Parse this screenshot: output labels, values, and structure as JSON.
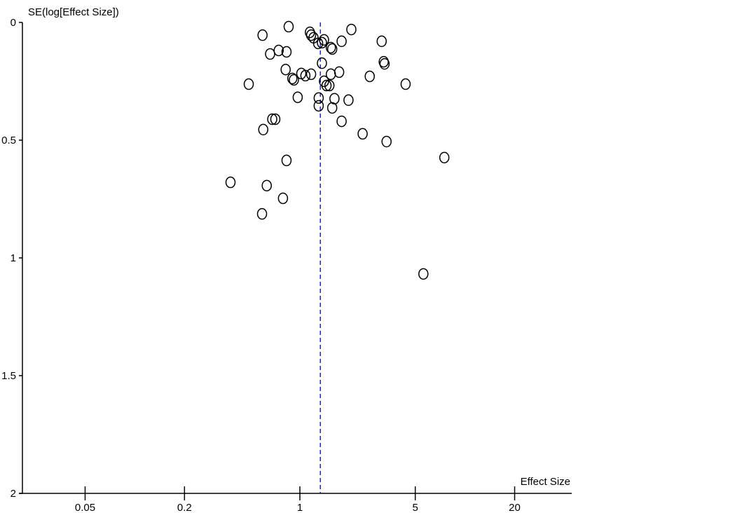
{
  "chart_data": {
    "type": "scatter",
    "title": "",
    "xlabel": "Effect Size",
    "ylabel": "SE(log[Effect Size])",
    "x_scale": "log",
    "y_reversed": true,
    "xlim": [
      0.027,
      30
    ],
    "ylim": [
      0,
      2
    ],
    "x_ticks": [
      0.05,
      0.2,
      1,
      5,
      20
    ],
    "x_tick_labels": [
      "0.05",
      "0.2",
      "1",
      "5",
      "20"
    ],
    "y_ticks": [
      0,
      0.5,
      1,
      1.5,
      2
    ],
    "y_tick_labels": [
      "0",
      "0.5",
      "1",
      "1.5",
      "2"
    ],
    "grid": false,
    "reference_line": {
      "x": 1.33,
      "style": "dashed",
      "color": "#0000cc"
    },
    "marker": "open-circle",
    "points": [
      [
        0.855,
        0.018
      ],
      [
        0.594,
        0.054
      ],
      [
        1.15,
        0.042
      ],
      [
        1.17,
        0.054
      ],
      [
        1.21,
        0.065
      ],
      [
        2.05,
        0.03
      ],
      [
        1.4,
        0.074
      ],
      [
        1.36,
        0.086
      ],
      [
        1.29,
        0.089
      ],
      [
        1.79,
        0.08
      ],
      [
        3.13,
        0.08
      ],
      [
        1.54,
        0.107
      ],
      [
        1.57,
        0.113
      ],
      [
        0.66,
        0.134
      ],
      [
        0.744,
        0.119
      ],
      [
        0.83,
        0.125
      ],
      [
        3.22,
        0.167
      ],
      [
        3.26,
        0.176
      ],
      [
        1.36,
        0.173
      ],
      [
        0.82,
        0.2
      ],
      [
        1.73,
        0.211
      ],
      [
        1.02,
        0.217
      ],
      [
        1.08,
        0.226
      ],
      [
        1.17,
        0.22
      ],
      [
        1.54,
        0.22
      ],
      [
        0.9,
        0.238
      ],
      [
        0.92,
        0.244
      ],
      [
        2.65,
        0.229
      ],
      [
        1.4,
        0.25
      ],
      [
        1.45,
        0.268
      ],
      [
        1.51,
        0.268
      ],
      [
        0.49,
        0.262
      ],
      [
        4.37,
        0.262
      ],
      [
        0.97,
        0.318
      ],
      [
        1.62,
        0.324
      ],
      [
        1.3,
        0.321
      ],
      [
        1.97,
        0.33
      ],
      [
        1.3,
        0.354
      ],
      [
        1.57,
        0.363
      ],
      [
        0.68,
        0.411
      ],
      [
        0.71,
        0.411
      ],
      [
        1.79,
        0.42
      ],
      [
        0.6,
        0.455
      ],
      [
        2.4,
        0.473
      ],
      [
        3.35,
        0.506
      ],
      [
        7.5,
        0.574
      ],
      [
        0.83,
        0.586
      ],
      [
        0.38,
        0.679
      ],
      [
        0.63,
        0.693
      ],
      [
        0.79,
        0.747
      ],
      [
        0.59,
        0.813
      ],
      [
        5.6,
        1.068
      ]
    ]
  }
}
